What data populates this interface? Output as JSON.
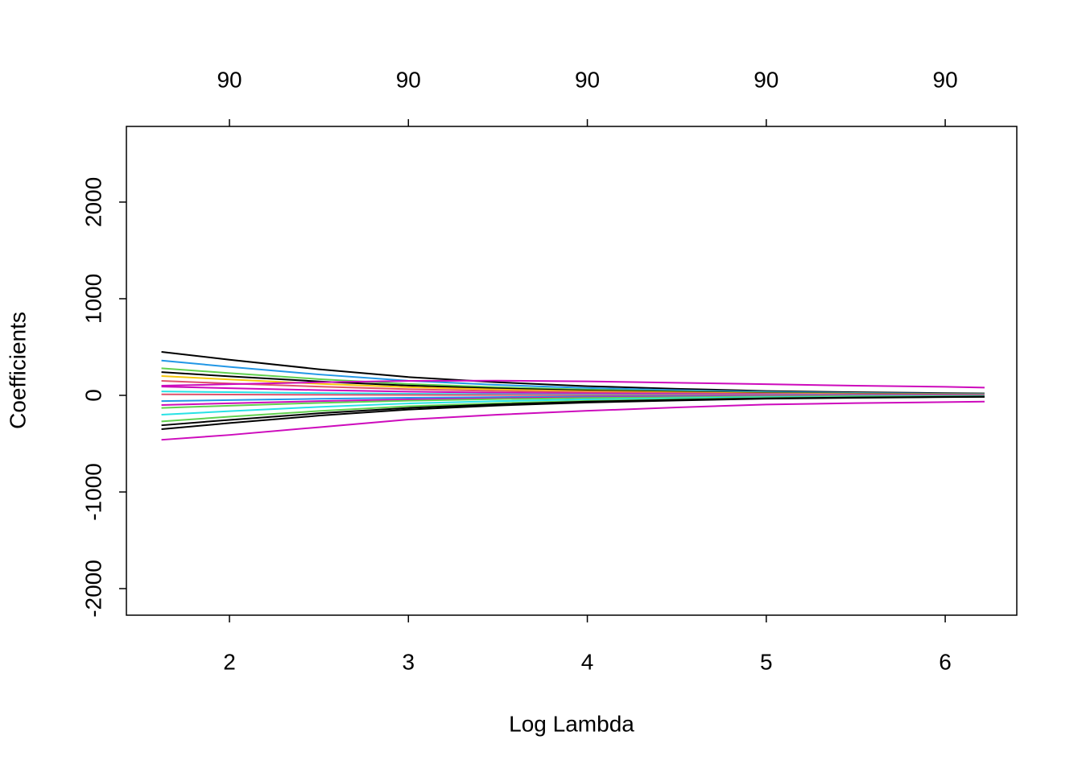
{
  "chart_data": {
    "type": "line",
    "x_label": "Log Lambda",
    "y_label": "Coefficients",
    "x": [
      1.62,
      2,
      2.5,
      3,
      3.5,
      4,
      4.5,
      5,
      5.5,
      6,
      6.22
    ],
    "xlim": [
      1.424,
      6.4
    ],
    "xticks": [
      2,
      3,
      4,
      5,
      6
    ],
    "ylim": [
      -2275,
      2783
    ],
    "yticks": [
      -2000,
      -1000,
      0,
      1000,
      2000
    ],
    "top_ticks": [
      {
        "value": 2,
        "label": "90"
      },
      {
        "value": 3,
        "label": "90"
      },
      {
        "value": 4,
        "label": "90"
      },
      {
        "value": 5,
        "label": "90"
      },
      {
        "value": 6,
        "label": "90"
      }
    ],
    "grid": false,
    "series": [
      {
        "color": "#000000",
        "values": [
          450,
          369,
          270,
          189,
          135,
          95,
          68,
          45,
          32,
          23,
          20
        ]
      },
      {
        "color": "#2297E6",
        "values": [
          360,
          295,
          216,
          151,
          108,
          76,
          54,
          36,
          25,
          18,
          16
        ]
      },
      {
        "color": "#61D04F",
        "values": [
          280,
          230,
          168,
          118,
          84,
          59,
          42,
          28,
          20,
          14,
          13
        ]
      },
      {
        "color": "#000000",
        "values": [
          240,
          197,
          144,
          101,
          72,
          50,
          36,
          24,
          17,
          12,
          11
        ]
      },
      {
        "color": "#F5C710",
        "values": [
          200,
          164,
          120,
          84,
          60,
          42,
          30,
          20,
          14,
          10,
          9
        ]
      },
      {
        "color": "#DF536B",
        "values": [
          150,
          123,
          90,
          63,
          45,
          32,
          23,
          15,
          11,
          8,
          7
        ]
      },
      {
        "color": "#CD0BBC",
        "values": [
          90,
          74,
          54,
          38,
          27,
          19,
          14,
          9,
          6,
          5,
          4
        ]
      },
      {
        "color": "#28E2E5",
        "values": [
          40,
          33,
          24,
          17,
          12,
          8,
          6,
          4,
          3,
          2,
          2
        ]
      },
      {
        "color": "#DF536B",
        "values": [
          10,
          8,
          6,
          4,
          3,
          2,
          2,
          1,
          1,
          1,
          0
        ]
      },
      {
        "color": "#2297E6",
        "values": [
          -60,
          -49,
          -36,
          -25,
          -18,
          -13,
          -9,
          -6,
          -4,
          -3,
          -3
        ]
      },
      {
        "color": "#CD0BBC",
        "values": [
          -100,
          -82,
          -60,
          -42,
          -30,
          -21,
          -15,
          -10,
          -7,
          -5,
          -5
        ]
      },
      {
        "color": "#61D04F",
        "values": [
          -130,
          -107,
          -78,
          -55,
          -39,
          -27,
          -20,
          -13,
          -9,
          -7,
          -6
        ]
      },
      {
        "color": "#28E2E5",
        "values": [
          -200,
          -164,
          -120,
          -84,
          -60,
          -42,
          -30,
          -20,
          -14,
          -10,
          -9
        ]
      },
      {
        "color": "#61D04F",
        "values": [
          -270,
          -221,
          -162,
          -113,
          -81,
          -57,
          -41,
          -27,
          -19,
          -14,
          -12
        ]
      },
      {
        "color": "#000000",
        "values": [
          -310,
          -254,
          -186,
          -130,
          -93,
          -65,
          -47,
          -31,
          -22,
          -16,
          -14
        ]
      },
      {
        "color": "#000000",
        "values": [
          -350,
          -287,
          -210,
          -147,
          -105,
          -74,
          -53,
          -35,
          -25,
          -18,
          -16
        ]
      },
      {
        "color": "#CD0BBC",
        "values": [
          -460,
          -410,
          -330,
          -250,
          -200,
          -160,
          -125,
          -95,
          -80,
          -70,
          -65
        ]
      },
      {
        "color": "#CD0BBC",
        "values": [
          100,
          115,
          135,
          150,
          152,
          145,
          130,
          115,
          100,
          88,
          80
        ]
      }
    ]
  }
}
